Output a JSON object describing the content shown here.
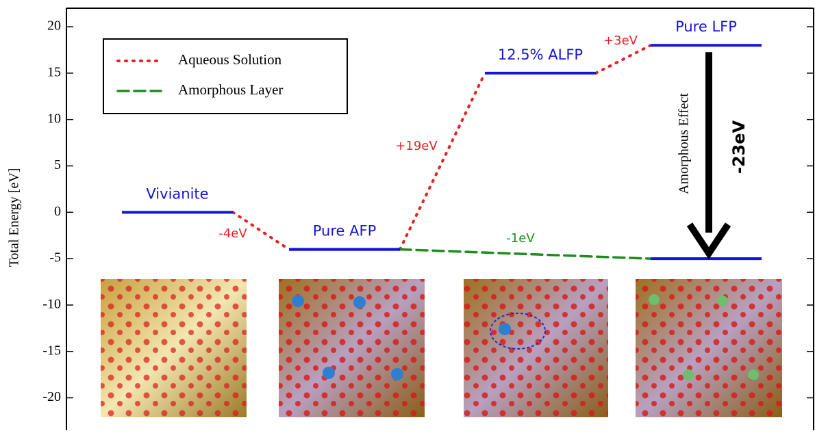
{
  "chart_data": {
    "type": "energy-levels",
    "ylabel": "Total Energy [eV]",
    "ylim": [
      -23.5,
      22
    ],
    "yticks": [
      -20,
      -15,
      -10,
      -5,
      0,
      5,
      10,
      15,
      20
    ],
    "categories": [
      "Vivianite",
      "Pure AFP",
      "12.5% ALFP",
      "Pure LFP"
    ],
    "level_color": "#1414d8",
    "series": [
      {
        "name": "Aqueous Solution",
        "color": "#e82020",
        "style": "dotted",
        "values": [
          0,
          -4,
          15,
          18
        ]
      },
      {
        "name": "Amorphous Layer",
        "color": "#1e8c1e",
        "style": "dashed",
        "values": [
          null,
          -4,
          null,
          -5
        ]
      }
    ],
    "annotations": [
      "-4eV",
      "+19eV",
      "+3eV",
      "-1eV"
    ],
    "arrow_label": "-23eV",
    "arrow_caption": "Amorphous Effect"
  }
}
